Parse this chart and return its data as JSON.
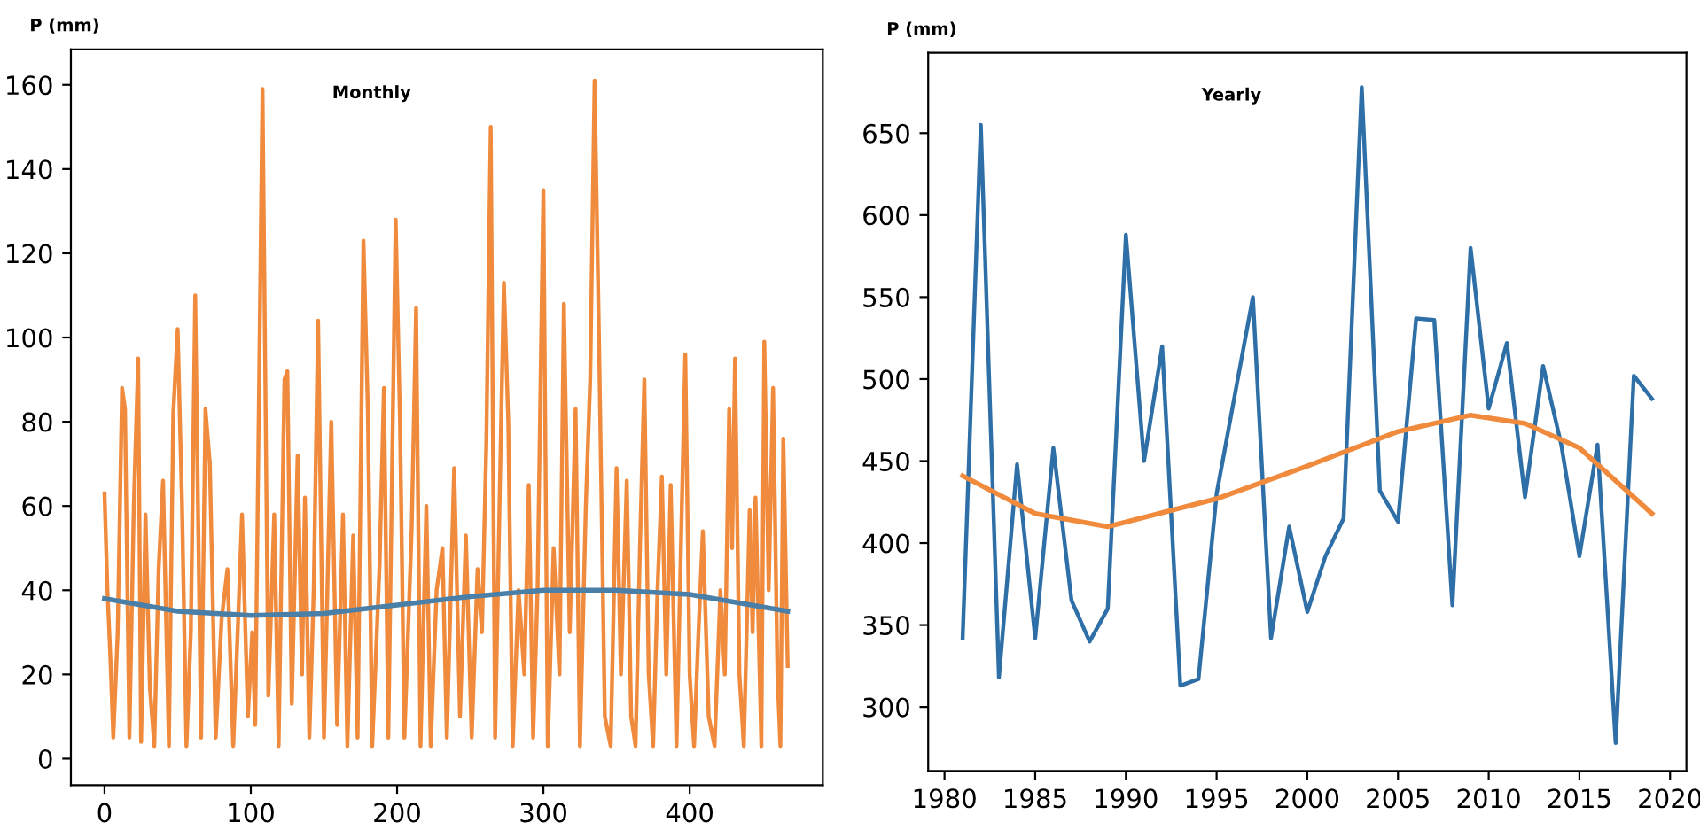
{
  "chart_data": [
    {
      "type": "line",
      "title": "Monthly",
      "ylabel": "P (mm)",
      "xlim": [
        -23,
        491
      ],
      "ylim": [
        -6.3,
        168.4
      ],
      "xticks": [
        0,
        100,
        200,
        300,
        400
      ],
      "yticks": [
        0,
        20,
        40,
        60,
        80,
        100,
        120,
        140,
        160
      ],
      "grid": false,
      "legend": false,
      "marker": "none",
      "line_style": "solid",
      "series": [
        {
          "color": "#f08a3c",
          "x": [
            0,
            2,
            4,
            6,
            9,
            12,
            14,
            17,
            20,
            23,
            25,
            28,
            31,
            34,
            37,
            40,
            44,
            47,
            50,
            53,
            56,
            59,
            62,
            66,
            69,
            72,
            76,
            80,
            84,
            88,
            91,
            94,
            98,
            101,
            103,
            108,
            112,
            116,
            119,
            123,
            125,
            128,
            132,
            135,
            137,
            140,
            143,
            146,
            150,
            155,
            159,
            163,
            166,
            170,
            173,
            177,
            180,
            183,
            188,
            191,
            194,
            199,
            202,
            205,
            210,
            213,
            216,
            220,
            223,
            227,
            231,
            234,
            239,
            243,
            247,
            251,
            255,
            258,
            261,
            264,
            267,
            270,
            273,
            276,
            279,
            283,
            287,
            290,
            293,
            296,
            300,
            303,
            307,
            311,
            314,
            318,
            322,
            325,
            329,
            332,
            335,
            338,
            342,
            346,
            350,
            353,
            357,
            360,
            363,
            366,
            369,
            372,
            375,
            378,
            381,
            384,
            387,
            391,
            394,
            397,
            400,
            403,
            406,
            409,
            413,
            417,
            421,
            424,
            427,
            429,
            431,
            434,
            437,
            441,
            443,
            445,
            449,
            451,
            454,
            457,
            460,
            462,
            464,
            467
          ],
          "values": [
            63,
            40,
            24,
            5,
            30,
            88,
            83,
            5,
            60,
            95,
            4,
            58,
            17,
            3,
            45,
            66,
            3,
            82,
            102,
            60,
            3,
            30,
            110,
            5,
            83,
            70,
            5,
            33,
            45,
            3,
            30,
            58,
            10,
            30,
            8,
            159,
            15,
            58,
            3,
            90,
            92,
            13,
            72,
            20,
            62,
            5,
            40,
            104,
            5,
            80,
            8,
            58,
            3,
            53,
            5,
            123,
            83,
            3,
            46,
            88,
            5,
            128,
            80,
            5,
            55,
            107,
            3,
            60,
            3,
            40,
            50,
            5,
            69,
            10,
            53,
            5,
            45,
            30,
            75,
            150,
            5,
            60,
            113,
            80,
            3,
            40,
            20,
            65,
            5,
            40,
            135,
            3,
            50,
            20,
            108,
            30,
            83,
            3,
            60,
            90,
            161,
            100,
            10,
            3,
            69,
            20,
            66,
            10,
            3,
            50,
            90,
            20,
            3,
            40,
            67,
            20,
            65,
            3,
            50,
            96,
            20,
            3,
            30,
            54,
            10,
            3,
            40,
            20,
            83,
            50,
            95,
            20,
            3,
            59,
            30,
            62,
            3,
            99,
            40,
            88,
            20,
            3,
            76,
            22
          ]
        },
        {
          "color": "#4a7fa8",
          "x": [
            0,
            50,
            100,
            150,
            200,
            250,
            300,
            350,
            400,
            450,
            467
          ],
          "values": [
            38,
            35,
            34,
            34.5,
            36.5,
            38.5,
            40,
            40,
            39,
            36,
            35
          ]
        }
      ]
    },
    {
      "type": "line",
      "title": "Yearly",
      "ylabel": "P (mm)",
      "xlim": [
        1979.1,
        2020.9
      ],
      "ylim": [
        261,
        699
      ],
      "xticks": [
        1980,
        1985,
        1990,
        1995,
        2000,
        2005,
        2010,
        2015,
        2020
      ],
      "yticks": [
        300,
        350,
        400,
        450,
        500,
        550,
        600,
        650
      ],
      "grid": false,
      "legend": false,
      "marker": "none",
      "line_style": "solid",
      "series": [
        {
          "color": "#2f6fa8",
          "x": [
            1981,
            1982,
            1983,
            1984,
            1985,
            1986,
            1987,
            1988,
            1989,
            1990,
            1991,
            1992,
            1993,
            1994,
            1995,
            1996,
            1997,
            1998,
            1999,
            2000,
            2001,
            2002,
            2003,
            2004,
            2005,
            2006,
            2007,
            2008,
            2009,
            2010,
            2011,
            2012,
            2013,
            2014,
            2015,
            2016,
            2017,
            2018,
            2019
          ],
          "values": [
            342,
            655,
            318,
            448,
            342,
            458,
            365,
            340,
            360,
            588,
            450,
            520,
            313,
            317,
            430,
            490,
            550,
            342,
            410,
            358,
            392,
            415,
            678,
            432,
            413,
            537,
            536,
            362,
            580,
            482,
            522,
            428,
            508,
            460,
            392,
            460,
            278,
            502,
            488
          ]
        },
        {
          "color": "#f08a3c",
          "x": [
            1981,
            1985,
            1989,
            1995,
            2000,
            2005,
            2009,
            2012,
            2015,
            2019
          ],
          "values": [
            441,
            418,
            410,
            427,
            447,
            468,
            478,
            473,
            458,
            418
          ]
        }
      ]
    }
  ]
}
